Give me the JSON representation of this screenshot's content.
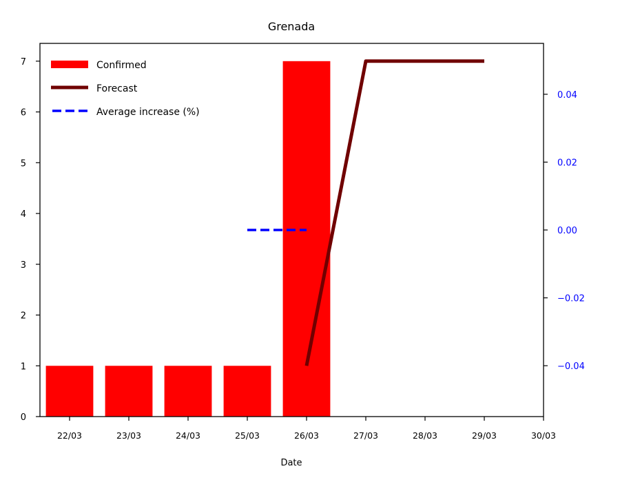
{
  "chart_data": {
    "type": "bar",
    "title": "Grenada",
    "xlabel": "Date",
    "ylabel": "",
    "y2label": "",
    "x_ticks": [
      "22/03",
      "23/03",
      "24/03",
      "25/03",
      "26/03",
      "27/03",
      "28/03",
      "29/03",
      "30/03"
    ],
    "xlim": [
      "21/03 12:00",
      "30/03"
    ],
    "ylim": [
      0,
      7.35
    ],
    "y_ticks": [
      0,
      1,
      2,
      3,
      4,
      5,
      6,
      7
    ],
    "y2lim": [
      -0.055,
      0.055
    ],
    "y2_ticks": [
      -0.04,
      -0.02,
      0.0,
      0.02,
      0.04
    ],
    "y2_tick_labels": [
      "−0.04",
      "−0.02",
      "0.00",
      "0.02",
      "0.04"
    ],
    "grid": false,
    "legend_position": "top-left",
    "colors": {
      "confirmed": "#ff0000",
      "forecast": "#700000",
      "average": "#0000ff",
      "right_axis": "#0000ff"
    },
    "series": [
      {
        "name": "Confirmed",
        "kind": "bar",
        "axis": "left",
        "x": [
          "22/03",
          "23/03",
          "24/03",
          "25/03",
          "26/03"
        ],
        "values": [
          1,
          1,
          1,
          1,
          7
        ]
      },
      {
        "name": "Forecast",
        "kind": "line",
        "axis": "left",
        "x": [
          "26/03",
          "27/03",
          "28/03",
          "29/03"
        ],
        "values": [
          1,
          7,
          7,
          7
        ]
      },
      {
        "name": "Average increase (%)",
        "kind": "dashed-line",
        "axis": "right",
        "x": [
          "25/03",
          "26/03"
        ],
        "values": [
          0.0,
          0.0
        ]
      }
    ]
  }
}
